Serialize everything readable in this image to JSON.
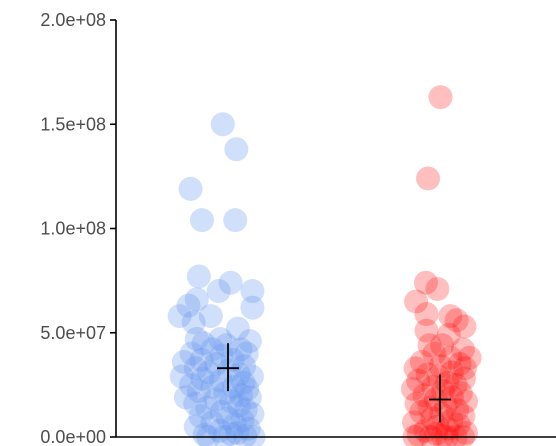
{
  "chart_data": {
    "type": "scatter",
    "title": "",
    "xlabel": "",
    "ylabel": "",
    "ylim": [
      0,
      200000000
    ],
    "y_ticks": [
      {
        "value": 0,
        "label": "0.0e+00"
      },
      {
        "value": 50000000,
        "label": "5.0e+07"
      },
      {
        "value": 100000000,
        "label": "1.0e+08"
      },
      {
        "value": 150000000,
        "label": "1.5e+08"
      },
      {
        "value": 200000000,
        "label": "2.0e+08"
      }
    ],
    "grid": false,
    "legend": "none",
    "series": [
      {
        "color": "#6495ed",
        "point_alpha": 0.3,
        "group_index": 0,
        "mean": 33000000,
        "lower": 22000000,
        "upper": 45000000,
        "points": [
          [
            -0.1,
            150000000
          ],
          [
            0.16,
            138000000
          ],
          [
            -0.72,
            119000000
          ],
          [
            -0.5,
            104000000
          ],
          [
            0.14,
            104000000
          ],
          [
            -0.56,
            77000000
          ],
          [
            0.05,
            74000000
          ],
          [
            -0.18,
            70000000
          ],
          [
            0.47,
            70000000
          ],
          [
            -0.6,
            66000000
          ],
          [
            -0.76,
            63000000
          ],
          [
            0.47,
            62000000
          ],
          [
            -0.93,
            58000000
          ],
          [
            -0.33,
            58000000
          ],
          [
            -0.66,
            55000000
          ],
          [
            0.19,
            52000000
          ],
          [
            -0.6,
            47000000
          ],
          [
            -0.15,
            47000000
          ],
          [
            0.42,
            46000000
          ],
          [
            -0.47,
            45000000
          ],
          [
            -0.03,
            44000000
          ],
          [
            -0.3,
            42000000
          ],
          [
            0.24,
            42000000
          ],
          [
            -0.7,
            40000000
          ],
          [
            0.36,
            40000000
          ],
          [
            -0.12,
            39000000
          ],
          [
            -0.51,
            37000000
          ],
          [
            0.09,
            37000000
          ],
          [
            -0.85,
            36000000
          ],
          [
            -0.23,
            35000000
          ],
          [
            0.31,
            34000000
          ],
          [
            -0.62,
            33000000
          ],
          [
            0.02,
            32000000
          ],
          [
            -0.37,
            31000000
          ],
          [
            0.21,
            30000000
          ],
          [
            -0.89,
            29000000
          ],
          [
            0.46,
            29000000
          ],
          [
            -0.49,
            28000000
          ],
          [
            -0.14,
            27000000
          ],
          [
            0.3,
            26000000
          ],
          [
            -0.71,
            25000000
          ],
          [
            -0.3,
            24000000
          ],
          [
            0.11,
            24000000
          ],
          [
            0.37,
            23000000
          ],
          [
            -0.56,
            22000000
          ],
          [
            -0.05,
            21000000
          ],
          [
            0.25,
            20000000
          ],
          [
            -0.81,
            19000000
          ],
          [
            0.42,
            19000000
          ],
          [
            -0.24,
            18000000
          ],
          [
            0.06,
            17000000
          ],
          [
            -0.63,
            16000000
          ],
          [
            0.21,
            15000000
          ],
          [
            -0.4,
            14000000
          ],
          [
            0.34,
            13000000
          ],
          [
            -0.12,
            12000000
          ],
          [
            0.47,
            11000000
          ],
          [
            -0.53,
            10000000
          ],
          [
            0.0,
            9000000
          ],
          [
            0.28,
            8000000
          ],
          [
            -0.3,
            7000000
          ],
          [
            0.13,
            6000000
          ],
          [
            -0.62,
            5000000
          ],
          [
            0.4,
            4000000
          ],
          [
            -0.16,
            3000000
          ],
          [
            0.18,
            2000000
          ],
          [
            -0.45,
            1000000
          ],
          [
            0.33,
            500000
          ],
          [
            -0.07,
            0
          ],
          [
            0.49,
            0
          ],
          [
            -0.38,
            0
          ],
          [
            0.06,
            1500000
          ]
        ]
      },
      {
        "color": "#ff0000",
        "point_alpha": 0.25,
        "group_index": 1,
        "mean": 18000000,
        "lower": 7000000,
        "upper": 30000000,
        "points": [
          [
            0.01,
            163000000
          ],
          [
            -0.23,
            124000000
          ],
          [
            -0.27,
            74000000
          ],
          [
            -0.05,
            71000000
          ],
          [
            -0.46,
            65000000
          ],
          [
            -0.26,
            59000000
          ],
          [
            0.2,
            58000000
          ],
          [
            0.32,
            56000000
          ],
          [
            0.47,
            53000000
          ],
          [
            -0.26,
            51000000
          ],
          [
            0.17,
            49000000
          ],
          [
            0.04,
            44000000
          ],
          [
            -0.2,
            44000000
          ],
          [
            0.44,
            42000000
          ],
          [
            -0.11,
            40000000
          ],
          [
            0.2,
            38000000
          ],
          [
            0.57,
            38000000
          ],
          [
            -0.35,
            36000000
          ],
          [
            0.38,
            35000000
          ],
          [
            0.01,
            34000000
          ],
          [
            -0.47,
            33000000
          ],
          [
            0.48,
            33000000
          ],
          [
            0.23,
            31000000
          ],
          [
            -0.24,
            30000000
          ],
          [
            -0.03,
            29000000
          ],
          [
            0.46,
            28000000
          ],
          [
            -0.42,
            27000000
          ],
          [
            0.14,
            26000000
          ],
          [
            0.3,
            25000000
          ],
          [
            -0.13,
            24000000
          ],
          [
            -0.52,
            23000000
          ],
          [
            0.06,
            22000000
          ],
          [
            0.4,
            21000000
          ],
          [
            -0.3,
            20000000
          ],
          [
            0.23,
            19000000
          ],
          [
            -0.08,
            18000000
          ],
          [
            0.5,
            17000000
          ],
          [
            -0.45,
            16000000
          ],
          [
            0.11,
            15000000
          ],
          [
            -0.2,
            14000000
          ],
          [
            0.33,
            13000000
          ],
          [
            -0.36,
            12000000
          ],
          [
            0.03,
            11000000
          ],
          [
            0.45,
            10000000
          ],
          [
            -0.15,
            9000000
          ],
          [
            0.22,
            8000000
          ],
          [
            -0.5,
            7000000
          ],
          [
            0.36,
            6000000
          ],
          [
            -0.05,
            5000000
          ],
          [
            0.15,
            4000000
          ],
          [
            -0.28,
            3000000
          ],
          [
            0.5,
            2000000
          ],
          [
            -0.41,
            1000000
          ],
          [
            0.05,
            500000
          ],
          [
            0.3,
            0
          ],
          [
            -0.18,
            0
          ],
          [
            0.44,
            0
          ],
          [
            -0.49,
            0
          ],
          [
            0.13,
            0
          ],
          [
            -0.07,
            1500000
          ]
        ]
      }
    ]
  }
}
